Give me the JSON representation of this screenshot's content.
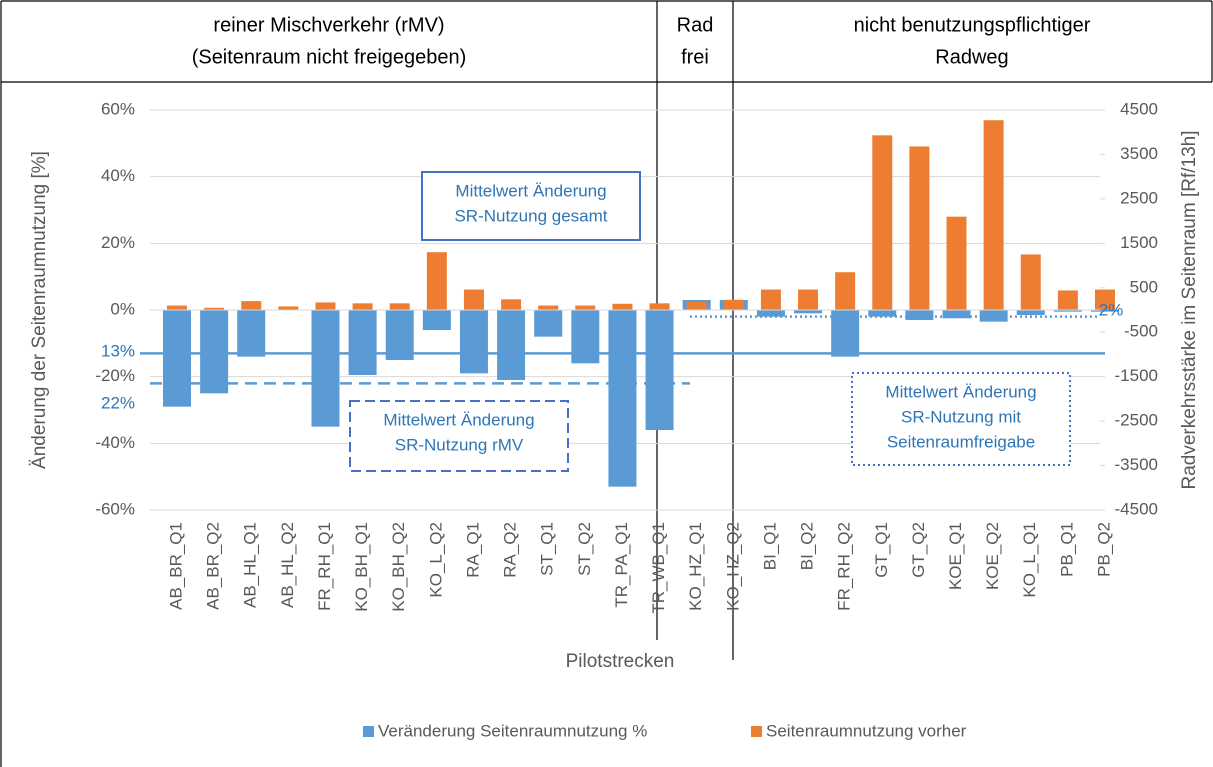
{
  "header": {
    "groups": [
      {
        "lines": [
          "reiner Mischverkehr (rMV)",
          "(Seitenraum nicht freigegeben)"
        ]
      },
      {
        "lines": [
          "Rad",
          "frei"
        ]
      },
      {
        "lines": [
          "nicht benutzungspflichtiger",
          "Radweg"
        ]
      }
    ]
  },
  "chart_data": {
    "type": "bar",
    "xlabel": "Pilotstrecken",
    "ylabel": "Änderung der Seitenraumnutzung [%]",
    "y2label": "Radverkehrsstärke im Seitenraum [Rf/13h]",
    "categories": [
      "AB_BR_Q1",
      "AB_BR_Q2",
      "AB_HL_Q1",
      "AB_HL_Q2",
      "FR_RH_Q1",
      "KO_BH_Q1",
      "KO_BH_Q2",
      "KO_L_Q2",
      "RA_Q1",
      "RA_Q2",
      "ST_Q1",
      "ST_Q2",
      "TR_PA_Q1",
      "TR_WB_Q1",
      "KO_HZ_Q1",
      "KO_HZ_Q2",
      "BI_Q1",
      "BI_Q2",
      "FR_RH_Q2",
      "GT_Q1",
      "GT_Q2",
      "KOE_Q1",
      "KOE_Q2",
      "KO_L_Q1",
      "PB_Q1",
      "PB_Q2"
    ],
    "series": [
      {
        "name": "Veränderung Seitenraumnutzung  %",
        "color": "#5b9bd5",
        "axis": "y",
        "values": [
          -29,
          -25,
          -14,
          0,
          -35,
          -19.5,
          -15,
          -6,
          -19,
          -21,
          -8,
          -16,
          -53,
          -36,
          3,
          3,
          -2,
          -1,
          -14,
          -2,
          -3,
          -2.5,
          -3.5,
          -1.5,
          -0.5,
          -0.5
        ]
      },
      {
        "name": "Seitenraumnutzung vorher",
        "color": "#ed7d31",
        "axis": "y2",
        "values": [
          100,
          50,
          200,
          80,
          170,
          150,
          150,
          1300,
          460,
          240,
          100,
          100,
          140,
          150,
          190,
          230,
          460,
          460,
          850,
          3930,
          3680,
          2100,
          4270,
          1250,
          440,
          460
        ]
      }
    ],
    "ylim": [
      -60,
      60
    ],
    "yticks": [
      {
        "value": 60,
        "label": "60%"
      },
      {
        "value": 40,
        "label": "40%"
      },
      {
        "value": 20,
        "label": "20%"
      },
      {
        "value": 0,
        "label": "0%"
      },
      {
        "value": -20,
        "label": "-20%"
      },
      {
        "value": -40,
        "label": "-40%"
      },
      {
        "value": -60,
        "label": "-60%"
      }
    ],
    "y2lim": [
      -4500,
      4500
    ],
    "y2ticks": [
      4500,
      3500,
      2500,
      1500,
      500,
      -500,
      -1500,
      -2500,
      -3500,
      -4500
    ],
    "reference_lines": [
      {
        "value": -13,
        "label": "13%",
        "style": "solid"
      },
      {
        "value": -22,
        "label": "22%",
        "style": "dashed"
      },
      {
        "value": -2,
        "label": "2%",
        "style": "dotted"
      }
    ],
    "annotations": [
      {
        "lines": [
          "Mittelwert Änderung",
          "SR-Nutzung gesamt"
        ]
      },
      {
        "lines": [
          "Mittelwert Änderung",
          "SR-Nutzung rMV"
        ]
      },
      {
        "lines": [
          "Mittelwert Änderung",
          "SR-Nutzung mit",
          "Seitenraumfreigabe"
        ]
      }
    ],
    "grid": true
  }
}
